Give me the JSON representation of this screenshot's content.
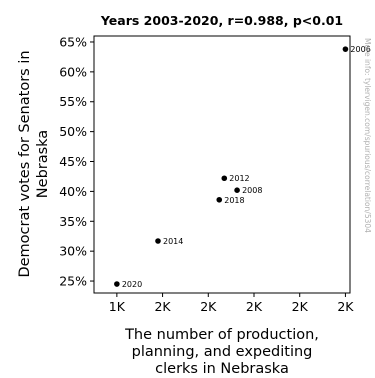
{
  "chart_data": {
    "type": "scatter",
    "title": "Years 2003-2020, r=0.988, p<0.01",
    "xlabel": [
      "The number of production,",
      "planning, and expediting",
      "clerks in Nebraska"
    ],
    "ylabel": [
      "Democrat votes for Senators in",
      "Nebraska"
    ],
    "x_tick_labels": [
      "1K",
      "2K",
      "2K",
      "2K",
      "2K",
      "2K"
    ],
    "y_tick_labels": [
      "25%",
      "30%",
      "35%",
      "40%",
      "45%",
      "50%",
      "55%",
      "60%",
      "65%"
    ],
    "y_ticks": [
      0.25,
      0.3,
      0.35,
      0.4,
      0.45,
      0.5,
      0.55,
      0.6,
      0.65
    ],
    "x_ticks": [
      1500,
      1600,
      1700,
      1800,
      1900,
      2000
    ],
    "xlim": [
      1450,
      2010
    ],
    "ylim": [
      0.23,
      0.66
    ],
    "points": [
      {
        "label": "2020",
        "x": 1500,
        "y": 0.245
      },
      {
        "label": "2014",
        "x": 1590,
        "y": 0.317
      },
      {
        "label": "2018",
        "x": 1724,
        "y": 0.386
      },
      {
        "label": "2012",
        "x": 1735,
        "y": 0.422
      },
      {
        "label": "2008",
        "x": 1763,
        "y": 0.402
      },
      {
        "label": "2006",
        "x": 2000,
        "y": 0.638
      }
    ],
    "grid": false,
    "legend": "none"
  },
  "watermark": "More info: tylervigen.com/spurious/correlation/5304"
}
